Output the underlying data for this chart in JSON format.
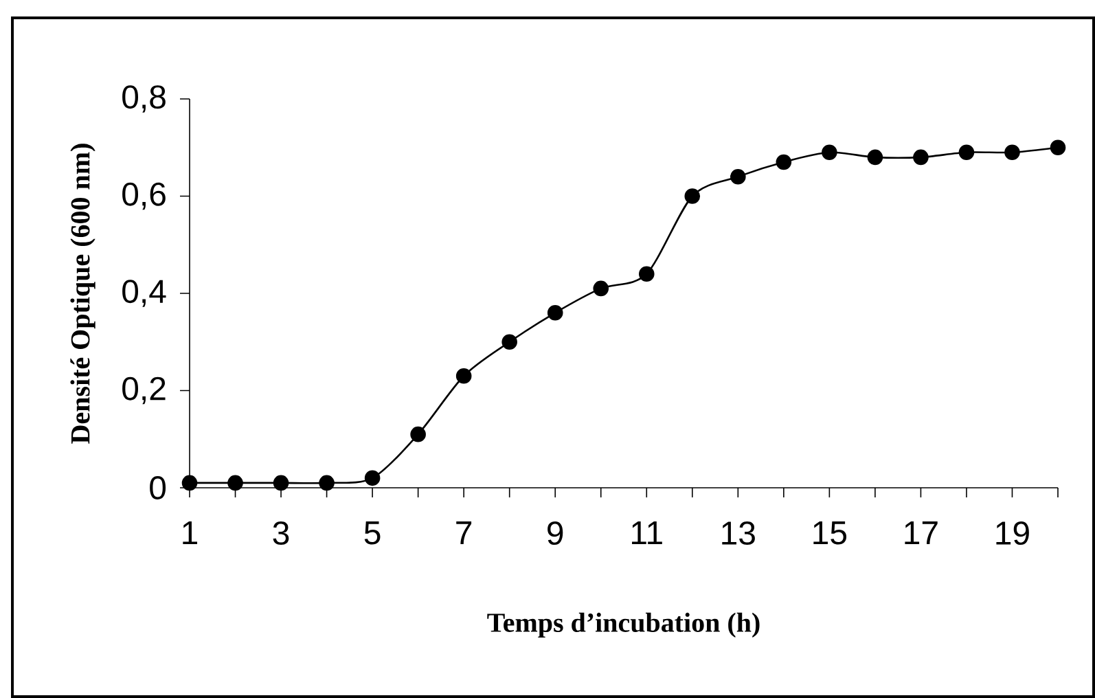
{
  "chart_data": {
    "type": "line",
    "xlabel": "Temps d’incubation (h)",
    "ylabel": "Densité Optique (600 nm)",
    "x": [
      1,
      2,
      3,
      4,
      5,
      6,
      7,
      8,
      9,
      10,
      11,
      12,
      13,
      14,
      15,
      16,
      17,
      18,
      19,
      20
    ],
    "series": [
      {
        "color": "#000000",
        "values": [
          0.01,
          0.01,
          0.01,
          0.01,
          0.02,
          0.11,
          0.23,
          0.3,
          0.36,
          0.41,
          0.44,
          0.6,
          0.64,
          0.67,
          0.69,
          0.68,
          0.68,
          0.69,
          0.69,
          0.7
        ]
      }
    ],
    "xlim": [
      1,
      20
    ],
    "xticks": [
      1,
      {
        "value": 2,
        "label": null
      },
      3,
      {
        "value": 4,
        "label": null
      },
      5,
      {
        "value": 6,
        "label": null
      },
      7,
      {
        "value": 8,
        "label": null
      },
      9,
      {
        "value": 10,
        "label": null
      },
      11,
      {
        "value": 12,
        "label": null
      },
      13,
      {
        "value": 14,
        "label": null
      },
      15,
      {
        "value": 16,
        "label": null
      },
      17,
      {
        "value": 18,
        "label": null
      },
      19,
      {
        "value": 20,
        "label": null
      }
    ],
    "ylim": [
      0,
      0.8
    ],
    "yticks": [
      0,
      {
        "value": 0.2,
        "label": "0,2"
      },
      {
        "value": 0.4,
        "label": "0,4"
      },
      {
        "value": 0.6,
        "label": "0,6"
      },
      {
        "value": 0.8,
        "label": "0,8"
      }
    ],
    "grid": false,
    "marker": "circle",
    "line_style": "solid"
  }
}
